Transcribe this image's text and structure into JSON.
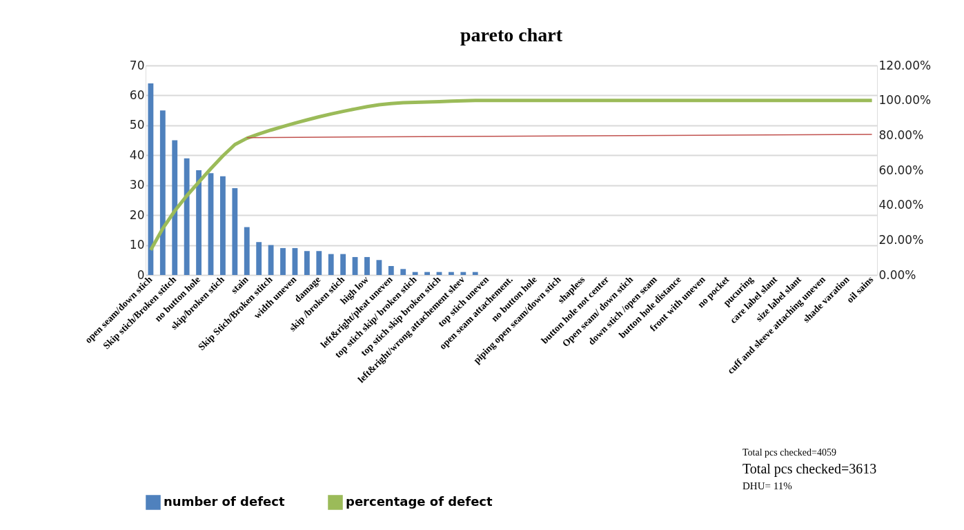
{
  "chart_data": {
    "type": "bar",
    "title": "pareto chart",
    "categories": [
      "open seam/down stich",
      null,
      "Skip stich/Broken stitch",
      null,
      "no button hole",
      null,
      "skip/broken stich",
      null,
      "stain",
      null,
      "Skip Stich/Broken stitch",
      null,
      "width uneven",
      null,
      "damage",
      null,
      "skip /broken stich",
      null,
      "high low",
      null,
      "left&right/pleat uneven",
      null,
      "top stich skip/ broken stich",
      null,
      "top stich skip broken stich",
      null,
      "left&right/wrong attachement sleev",
      null,
      "top  stich uneven",
      null,
      "open seam attachement.",
      null,
      "no button hole",
      null,
      "piping open seam/down stich",
      null,
      "shapless",
      null,
      "button hole not center",
      null,
      "Open seam/ down stich",
      null,
      "down stich /open seam",
      null,
      "button hole distance",
      null,
      "front with uneven",
      null,
      "no pocket",
      null,
      "pucuring",
      null,
      "care label slant",
      null,
      "size label slant",
      null,
      "cuff and sleeve attaching uneven",
      null,
      "shade varation",
      null,
      "oil sains"
    ],
    "series": [
      {
        "name": "number of defect",
        "color": "#4f81bd",
        "values": [
          64,
          55,
          45,
          39,
          35,
          34,
          33,
          29,
          16,
          11,
          10,
          9,
          9,
          8,
          8,
          7,
          7,
          6,
          6,
          5,
          3,
          2,
          1,
          1,
          1,
          1,
          1,
          1,
          0,
          0,
          0,
          0,
          0,
          0,
          0,
          0,
          0,
          0,
          0,
          0,
          0,
          0,
          0,
          0,
          0,
          0,
          0,
          0,
          0,
          0,
          0,
          0,
          0,
          0,
          0,
          0,
          0,
          0,
          0,
          0,
          0
        ]
      },
      {
        "name": "percentage of defect",
        "type": "line",
        "axis": "y2",
        "color": "#9bbb59",
        "values": [
          14.3,
          26.6,
          36.7,
          45.4,
          53.2,
          60.9,
          68.2,
          74.7,
          78.3,
          80.8,
          83.0,
          85.0,
          87.0,
          88.8,
          90.6,
          92.2,
          93.7,
          95.1,
          96.4,
          97.5,
          98.2,
          98.7,
          98.9,
          99.1,
          99.3,
          99.6,
          99.8,
          100,
          100,
          100,
          100,
          100,
          100,
          100,
          100,
          100,
          100,
          100,
          100,
          100,
          100,
          100,
          100,
          100,
          100,
          100,
          100,
          100,
          100,
          100,
          100,
          100,
          100,
          100,
          100,
          100,
          100,
          100,
          100,
          100,
          100
        ]
      },
      {
        "type": "line",
        "axis": "y2",
        "color": "#c0504d",
        "values": [
          null,
          null,
          null,
          null,
          null,
          null,
          null,
          null,
          78.7,
          null,
          null,
          null,
          null,
          null,
          null,
          null,
          null,
          null,
          null,
          null,
          null,
          null,
          null,
          null,
          null,
          null,
          null,
          null,
          null,
          null,
          null,
          null,
          null,
          null,
          null,
          null,
          null,
          null,
          null,
          null,
          null,
          null,
          null,
          null,
          null,
          null,
          null,
          null,
          null,
          null,
          null,
          null,
          null,
          null,
          null,
          null,
          null,
          null,
          null,
          null,
          80.5
        ]
      }
    ],
    "ylim": [
      0,
      70
    ],
    "yticks": [
      0,
      10,
      20,
      30,
      40,
      50,
      60,
      70
    ],
    "y2lim": [
      0,
      120
    ],
    "y2ticks": [
      {
        "value": 0,
        "label": "0.00%"
      },
      {
        "value": 20,
        "label": "20.00%"
      },
      {
        "value": 40,
        "label": "40.00%"
      },
      {
        "value": 60,
        "label": "60.00%"
      },
      {
        "value": 80,
        "label": "80.00%"
      },
      {
        "value": 100,
        "label": "100.00%"
      },
      {
        "value": 120,
        "label": "120.00%"
      }
    ],
    "grid": "y",
    "legend": "bottom",
    "annotations": [
      "Total pcs checked=4059",
      "Total pcs checked=3613",
      "DHU= 11%"
    ]
  }
}
